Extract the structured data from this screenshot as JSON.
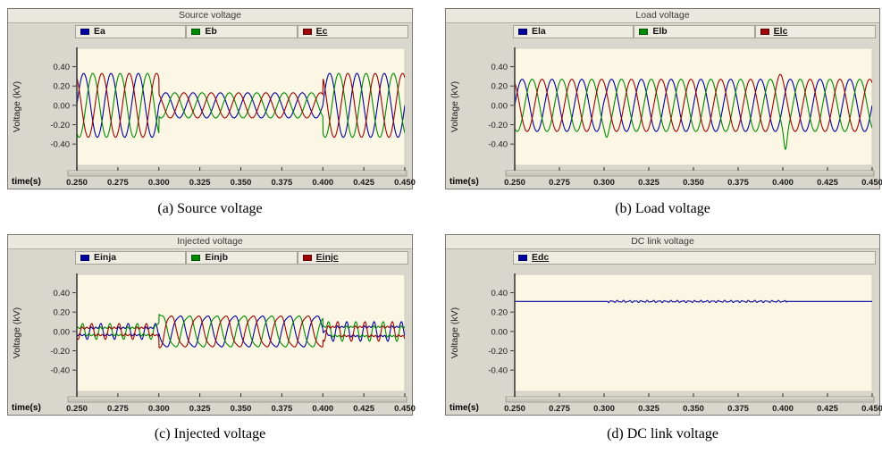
{
  "ui": {
    "fig_bg": "#ffffff",
    "panel_bg": "#d9d6cd",
    "panel_border": "#7c7a71",
    "titlebar_bg": "#eae7de",
    "legend_bg": "#edebe2",
    "plot_bg": "#fbf7e4",
    "plot_border": "#cfccc0",
    "axis_color": "#3c3c3c",
    "tick_text_color": "#1a1a1a",
    "xbar_fill": "#c9c6bb",
    "xbar_edge": "#94918a",
    "xbar_highlight": "#f4f2ea"
  },
  "chart_data": [
    {
      "id": "source-voltage",
      "type": "line",
      "title": "Source voltage",
      "caption": "(a) Source voltage",
      "xlabel": "time(s)",
      "ylabel": "Voltage (kV)",
      "xlim": [
        0.25,
        0.45
      ],
      "ylim": [
        -0.62,
        0.59
      ],
      "xticks": [
        "0.250",
        "0.275",
        "0.300",
        "0.325",
        "0.350",
        "0.375",
        "0.400",
        "0.425",
        "0.450"
      ],
      "yticks": [
        "0.40",
        "0.20",
        "0.00",
        "-0.20",
        "-0.40"
      ],
      "frequency_hz": 60,
      "legend_position": "top",
      "grid": false,
      "series": [
        {
          "label": "Ea",
          "color": "#0000A0",
          "phase_deg": 0,
          "segments": [
            {
              "t0": 0.25,
              "t1": 0.3,
              "amp": 0.33
            },
            {
              "t0": 0.3,
              "t1": 0.4,
              "amp": 0.13
            },
            {
              "t0": 0.4,
              "t1": 0.45,
              "amp": 0.33
            }
          ]
        },
        {
          "label": "Eb",
          "color": "#008A00",
          "phase_deg": -120,
          "segments": [
            {
              "t0": 0.25,
              "t1": 0.3,
              "amp": 0.33
            },
            {
              "t0": 0.3,
              "t1": 0.4,
              "amp": 0.13
            },
            {
              "t0": 0.4,
              "t1": 0.45,
              "amp": 0.33
            }
          ]
        },
        {
          "label": "Ec",
          "color": "#A00000",
          "phase_deg": 120,
          "active": true,
          "segments": [
            {
              "t0": 0.25,
              "t1": 0.3,
              "amp": 0.33
            },
            {
              "t0": 0.3,
              "t1": 0.4,
              "amp": 0.13
            },
            {
              "t0": 0.4,
              "t1": 0.45,
              "amp": 0.33
            }
          ]
        }
      ]
    },
    {
      "id": "load-voltage",
      "type": "line",
      "title": "Load voltage",
      "caption": "(b) Load voltage",
      "xlabel": "time(s)",
      "ylabel": "Voltage (kV)",
      "xlim": [
        0.25,
        0.45
      ],
      "ylim": [
        -0.62,
        0.59
      ],
      "xticks": [
        "0.250",
        "0.275",
        "0.300",
        "0.325",
        "0.350",
        "0.375",
        "0.400",
        "0.425",
        "0.450"
      ],
      "yticks": [
        "0.40",
        "0.20",
        "0.00",
        "-0.20",
        "-0.40"
      ],
      "frequency_hz": 60,
      "legend_position": "top",
      "grid": false,
      "series": [
        {
          "label": "Ela",
          "color": "#0000A0",
          "phase_deg": 0,
          "segments": [
            {
              "t0": 0.25,
              "t1": 0.45,
              "amp": 0.27
            }
          ],
          "spikes": [
            {
              "t": 0.2995,
              "dv": 0.05,
              "w": 0.0012
            }
          ]
        },
        {
          "label": "Elb",
          "color": "#008A00",
          "phase_deg": -120,
          "segments": [
            {
              "t0": 0.25,
              "t1": 0.45,
              "amp": 0.27
            }
          ],
          "spikes": [
            {
              "t": 0.3015,
              "dv": -0.06,
              "w": 0.0012
            },
            {
              "t": 0.4015,
              "dv": -0.185,
              "w": 0.0012
            }
          ]
        },
        {
          "label": "Elc",
          "color": "#A00000",
          "phase_deg": 120,
          "active": true,
          "segments": [
            {
              "t0": 0.25,
              "t1": 0.45,
              "amp": 0.27
            }
          ],
          "spikes": [
            {
              "t": 0.3985,
              "dv": 0.05,
              "w": 0.002
            }
          ]
        }
      ]
    },
    {
      "id": "injected-voltage",
      "type": "line",
      "title": "Injected voltage",
      "caption": "(c) Injected voltage",
      "xlabel": "time(s)",
      "ylabel": "Voltage (kV)",
      "xlim": [
        0.25,
        0.45
      ],
      "ylim": [
        -0.62,
        0.59
      ],
      "xticks": [
        "0.250",
        "0.275",
        "0.300",
        "0.325",
        "0.350",
        "0.375",
        "0.400",
        "0.425",
        "0.450"
      ],
      "yticks": [
        "0.40",
        "0.20",
        "0.00",
        "-0.20",
        "-0.40"
      ],
      "frequency_hz": 60,
      "legend_position": "top",
      "grid": false,
      "series": [
        {
          "label": "Einja",
          "color": "#0000A0",
          "phase_deg": 180,
          "segments": [
            {
              "t0": 0.25,
              "t1": 0.3,
              "amp": 0.055,
              "h3": 0.5,
              "h5": 0.35
            },
            {
              "t0": 0.3,
              "t1": 0.4,
              "amp": 0.165,
              "h3": 0.1
            },
            {
              "t0": 0.4,
              "t1": 0.45,
              "amp": 0.07,
              "h3": 0.5,
              "h5": 0.3
            }
          ],
          "spikes": [
            {
              "t": 0.401,
              "dv": 0.05,
              "w": 0.002
            }
          ]
        },
        {
          "label": "Einjb",
          "color": "#008A00",
          "phase_deg": 60,
          "segments": [
            {
              "t0": 0.25,
              "t1": 0.3,
              "amp": 0.055,
              "h3": 0.5,
              "h5": 0.35
            },
            {
              "t0": 0.3,
              "t1": 0.4,
              "amp": 0.165,
              "h3": 0.1
            },
            {
              "t0": 0.4,
              "t1": 0.45,
              "amp": 0.07,
              "h3": 0.5,
              "h5": 0.3
            }
          ],
          "spikes": [
            {
              "t": 0.2995,
              "dv": 0.05,
              "w": 0.0015
            }
          ]
        },
        {
          "label": "Einjc",
          "color": "#A00000",
          "phase_deg": -60,
          "active": true,
          "segments": [
            {
              "t0": 0.25,
              "t1": 0.3,
              "amp": 0.055,
              "h3": 0.5,
              "h5": 0.35
            },
            {
              "t0": 0.3,
              "t1": 0.4,
              "amp": 0.165,
              "h3": 0.1
            },
            {
              "t0": 0.4,
              "t1": 0.45,
              "amp": 0.07,
              "h3": 0.5,
              "h5": 0.3
            }
          ],
          "spikes": [
            {
              "t": 0.3025,
              "dv": -0.09,
              "w": 0.0018
            }
          ]
        }
      ]
    },
    {
      "id": "dc-link-voltage",
      "type": "line",
      "title": "DC link voltage",
      "caption": "(d) DC link voltage",
      "xlabel": "time(s)",
      "ylabel": "Voltage (kV)",
      "xlim": [
        0.25,
        0.45
      ],
      "ylim": [
        -0.62,
        0.59
      ],
      "xticks": [
        "0.250",
        "0.275",
        "0.300",
        "0.325",
        "0.350",
        "0.375",
        "0.400",
        "0.425",
        "0.450"
      ],
      "yticks": [
        "0.40",
        "0.20",
        "0.00",
        "-0.20",
        "-0.40"
      ],
      "legend_position": "top",
      "grid": false,
      "series": [
        {
          "label": "Edc",
          "color": "#0000A0",
          "active": true,
          "dc": {
            "base": 0.31,
            "ripple_amp": 0.007,
            "ripple_hz": 300,
            "ripple_t0": 0.302,
            "ripple_t1": 0.402
          }
        }
      ]
    }
  ]
}
